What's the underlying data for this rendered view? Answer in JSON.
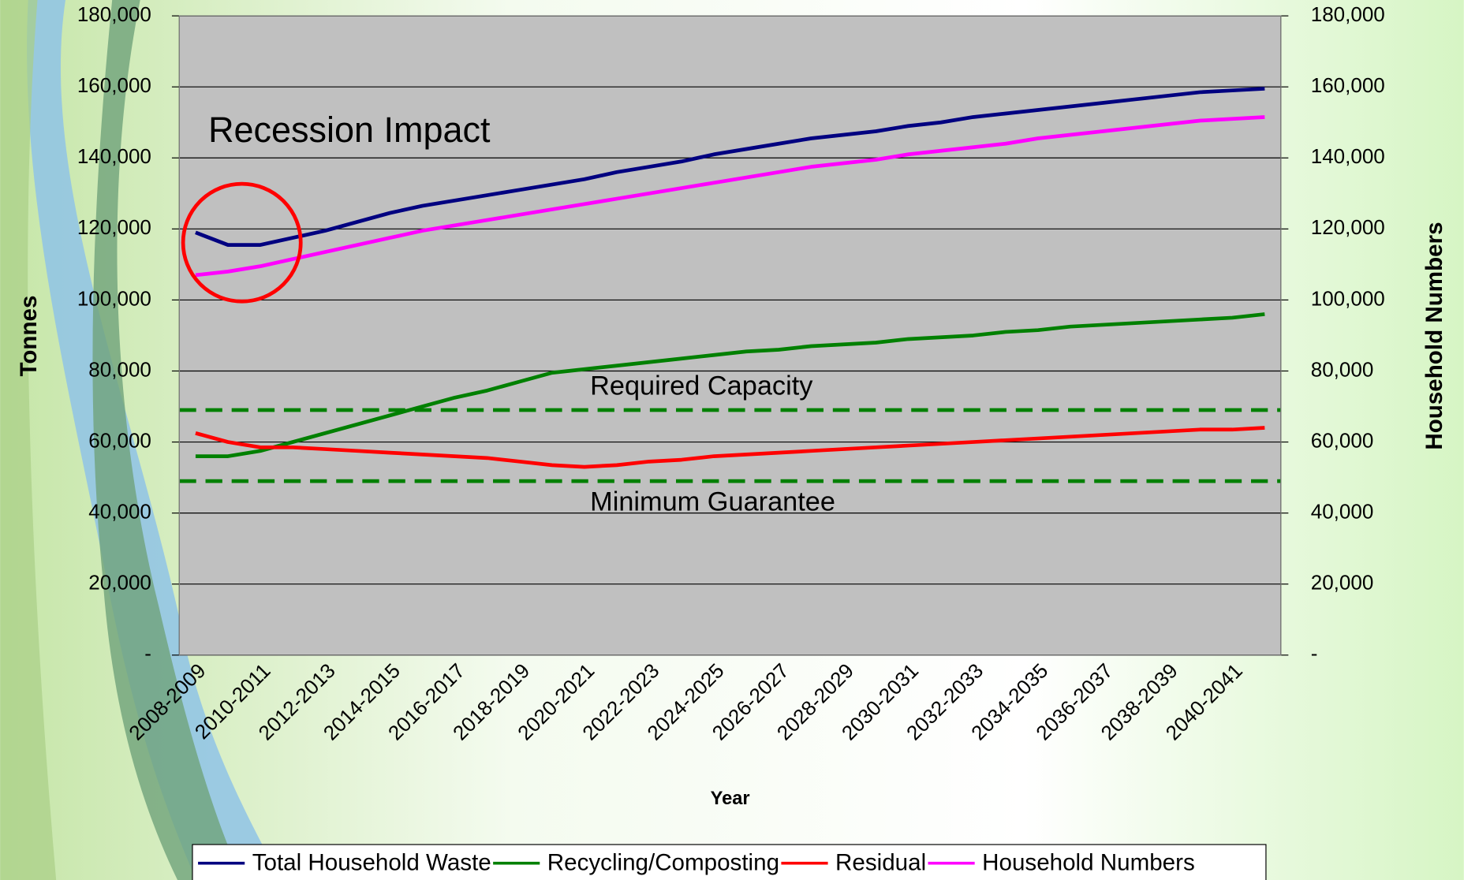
{
  "chart_data": {
    "type": "line",
    "x_label": "Year",
    "y_label": "Tonnes",
    "y2_label": "Household Numbers",
    "categories": [
      "2008-2009",
      null,
      "2010-2011",
      null,
      "2012-2013",
      null,
      "2014-2015",
      null,
      "2016-2017",
      null,
      "2018-2019",
      null,
      "2020-2021",
      null,
      "2022-2023",
      null,
      "2024-2025",
      null,
      "2026-2027",
      null,
      "2028-2029",
      null,
      "2030-2031",
      null,
      "2032-2033",
      null,
      "2034-2035",
      null,
      "2036-2037",
      null,
      "2038-2039",
      null,
      "2040-2041",
      null
    ],
    "series": [
      {
        "name": "Total Household Waste",
        "color": "#000080",
        "values": [
          119000,
          115500,
          115500,
          117500,
          119500,
          122000,
          124500,
          126500,
          128000,
          129500,
          131000,
          132500,
          134000,
          136000,
          137500,
          139000,
          141000,
          142500,
          144000,
          145500,
          146500,
          147500,
          149000,
          150000,
          151500,
          152500,
          153500,
          154500,
          155500,
          156500,
          157500,
          158500,
          159000,
          159500
        ]
      },
      {
        "name": "Recycling/Composting",
        "color": "#008000",
        "values": [
          56000,
          56000,
          57500,
          60000,
          62500,
          65000,
          67500,
          70000,
          72500,
          74500,
          77000,
          79500,
          80500,
          81500,
          82500,
          83500,
          84500,
          85500,
          86000,
          87000,
          87500,
          88000,
          89000,
          89500,
          90000,
          91000,
          91500,
          92500,
          93000,
          93500,
          94000,
          94500,
          95000,
          96000
        ]
      },
      {
        "name": "Residual",
        "color": "#ff0000",
        "values": [
          62500,
          60000,
          58500,
          58500,
          58000,
          57500,
          57000,
          56500,
          56000,
          55500,
          54500,
          53500,
          53000,
          53500,
          54500,
          55000,
          56000,
          56500,
          57000,
          57500,
          58000,
          58500,
          59000,
          59500,
          60000,
          60500,
          61000,
          61500,
          62000,
          62500,
          63000,
          63500,
          63500,
          64000
        ]
      },
      {
        "name": "Household Numbers",
        "color": "#ff00ff",
        "axis": "y2",
        "values": [
          107000,
          108000,
          109500,
          111500,
          113500,
          115500,
          117500,
          119500,
          121000,
          122500,
          124000,
          125500,
          127000,
          128500,
          130000,
          131500,
          133000,
          134500,
          136000,
          137500,
          138500,
          139500,
          141000,
          142000,
          143000,
          144000,
          145500,
          146500,
          147500,
          148500,
          149500,
          150500,
          151000,
          151500
        ]
      }
    ],
    "ylim": [
      0,
      180000
    ],
    "yticks": [
      {
        "value": 0,
        "label": "-"
      },
      {
        "value": 20000,
        "label": "20,000"
      },
      {
        "value": 40000,
        "label": "40,000"
      },
      {
        "value": 60000,
        "label": "60,000"
      },
      {
        "value": 80000,
        "label": "80,000"
      },
      {
        "value": 100000,
        "label": "100,000"
      },
      {
        "value": 120000,
        "label": "120,000"
      },
      {
        "value": 140000,
        "label": "140,000"
      },
      {
        "value": 160000,
        "label": "160,000"
      },
      {
        "value": 180000,
        "label": "180,000"
      }
    ],
    "y2lim": [
      0,
      180000
    ],
    "y2ticks": [
      {
        "value": 0,
        "label": "-"
      },
      {
        "value": 20000,
        "label": "20,000"
      },
      {
        "value": 40000,
        "label": "40,000"
      },
      {
        "value": 60000,
        "label": "60,000"
      },
      {
        "value": 80000,
        "label": "80,000"
      },
      {
        "value": 100000,
        "label": "100,000"
      },
      {
        "value": 120000,
        "label": "120,000"
      },
      {
        "value": 140000,
        "label": "140,000"
      },
      {
        "value": 160000,
        "label": "160,000"
      },
      {
        "value": 180000,
        "label": "180,000"
      }
    ],
    "grid": true,
    "legend": "bottom",
    "annotations": [
      {
        "text": "Recession Impact"
      },
      {
        "text": "Required Capacity",
        "value": 69000,
        "color": "#008000"
      },
      {
        "text": "Minimum Guarantee",
        "value": 49000,
        "color": "#008000"
      }
    ]
  }
}
